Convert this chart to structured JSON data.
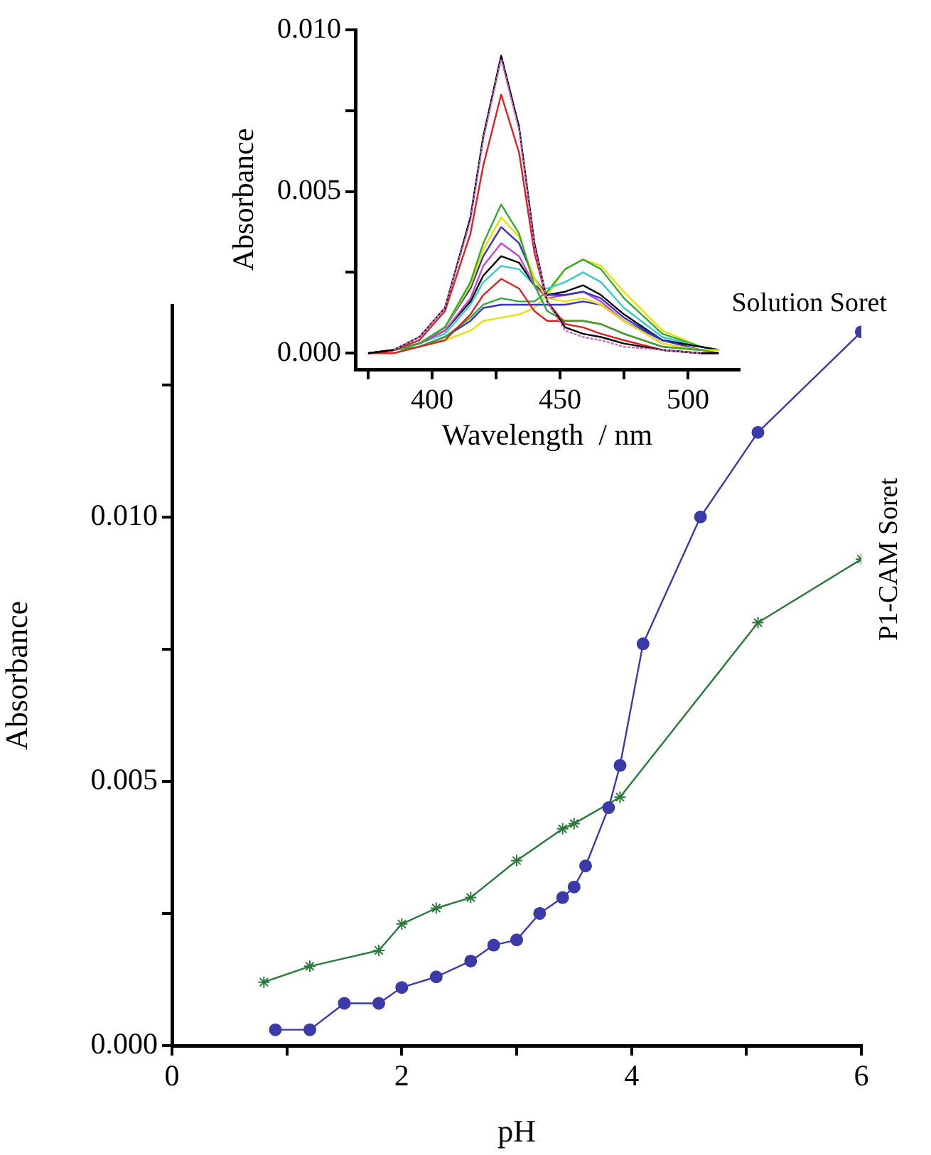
{
  "chart_data": [
    {
      "type": "line",
      "xlabel": "pH",
      "ylabel": "Absorbance",
      "xlim": [
        0,
        6
      ],
      "ylim": [
        0,
        0.014
      ],
      "xticks": [
        0,
        {
          "value": 1,
          "label": null
        },
        2,
        {
          "value": 3,
          "label": null
        },
        4,
        {
          "value": 5,
          "label": null
        },
        6
      ],
      "yticks": [
        {
          "value": 0,
          "label": "0.000"
        },
        {
          "value": 0.0025,
          "label": null
        },
        {
          "value": 0.005,
          "label": "0.005"
        },
        {
          "value": 0.0075,
          "label": null
        },
        {
          "value": 0.01,
          "label": "0.010"
        },
        {
          "value": 0.0125,
          "label": null
        }
      ],
      "grid": false,
      "legend": false,
      "series": [
        {
          "name": "Solution Soret",
          "color": "#3a3aa8",
          "marker": "circle",
          "x": [
            0.9,
            1.2,
            1.5,
            1.8,
            2.0,
            2.3,
            2.6,
            2.8,
            3.0,
            3.2,
            3.4,
            3.5,
            3.6,
            3.8,
            3.9,
            4.1,
            4.6,
            5.1,
            6.0
          ],
          "values": [
            0.0003,
            0.0003,
            0.0008,
            0.0008,
            0.0011,
            0.0013,
            0.0016,
            0.0019,
            0.002,
            0.0025,
            0.0028,
            0.003,
            0.0034,
            0.0045,
            0.0053,
            0.0076,
            0.01,
            0.0116,
            0.0135
          ]
        },
        {
          "name": "P1-CAM Soret",
          "color": "#2a7a3a",
          "marker": "cross",
          "x": [
            0.8,
            1.2,
            1.8,
            2.0,
            2.3,
            2.6,
            3.0,
            3.4,
            3.5,
            3.9,
            5.1,
            6.0
          ],
          "values": [
            0.0012,
            0.0015,
            0.0018,
            0.0023,
            0.0026,
            0.0028,
            0.0035,
            0.0041,
            0.0042,
            0.0047,
            0.008,
            0.0092
          ]
        }
      ]
    },
    {
      "type": "line",
      "xlabel": "Wavelength  / nm",
      "ylabel": "Absorbance",
      "xlim": [
        370,
        520
      ],
      "ylim": [
        -0.0005,
        0.01
      ],
      "xticks": [
        {
          "value": 375,
          "label": null
        },
        400,
        {
          "value": 425,
          "label": null
        },
        450,
        {
          "value": 475,
          "label": null
        },
        500
      ],
      "yticks": [
        {
          "value": 0,
          "label": "0.000"
        },
        {
          "value": 0.0025,
          "label": null
        },
        {
          "value": 0.005,
          "label": "0.005"
        },
        {
          "value": 0.0075,
          "label": null
        },
        {
          "value": 0.01,
          "label": "0.010"
        }
      ],
      "grid": false,
      "legend": false,
      "marker": "none",
      "x": [
        375,
        385,
        395,
        405,
        415,
        420,
        427,
        434,
        440,
        445,
        452,
        459,
        466,
        475,
        490,
        505,
        512
      ],
      "series": [
        {
          "color": "#000000",
          "values": [
            0,
            0.0001,
            0.0005,
            0.0014,
            0.0042,
            0.0067,
            0.0092,
            0.007,
            0.0034,
            0.0016,
            0.0008,
            0.0006,
            0.0005,
            0.0003,
            0.0001,
            0,
            0
          ]
        },
        {
          "color": "#cc66cc",
          "line_style": "dashed",
          "values": [
            null,
            0.0001,
            0.0005,
            0.0014,
            0.0041,
            0.0066,
            0.0091,
            0.0069,
            0.0033,
            0.0016,
            0.0007,
            0.0005,
            0.0004,
            0.0002,
            0.0001,
            0,
            null
          ]
        },
        {
          "color": "#e02020",
          "values": [
            0,
            0.0001,
            0.0004,
            0.0013,
            0.0037,
            0.0058,
            0.008,
            0.0062,
            0.0031,
            0.0016,
            0.0009,
            0.0008,
            0.0006,
            0.0004,
            0.0001,
            0,
            0
          ]
        },
        {
          "color": "#33aa33",
          "values": [
            0,
            0.0001,
            0.0003,
            0.0008,
            0.0022,
            0.0034,
            0.0046,
            0.0037,
            0.0021,
            0.0013,
            0.001,
            0.001,
            0.0009,
            0.0006,
            0.0002,
            0.0001,
            0
          ]
        },
        {
          "color": "#e8e000",
          "values": [
            null,
            null,
            0.0003,
            0.0008,
            0.0021,
            0.0032,
            0.0042,
            0.0036,
            0.0023,
            0.0017,
            0.0016,
            0.0017,
            0.0015,
            0.001,
            0.0003,
            0.0001,
            0.0001
          ]
        },
        {
          "color": "#3333cc",
          "values": [
            null,
            null,
            0.0003,
            0.0008,
            0.002,
            0.003,
            0.0039,
            0.0034,
            0.0023,
            0.0018,
            0.0018,
            0.0019,
            0.0017,
            0.0011,
            0.0004,
            0.0001,
            0.0001
          ]
        },
        {
          "color": "#cc44cc",
          "values": [
            0,
            0.0001,
            0.0003,
            0.0007,
            0.0017,
            0.0027,
            0.0034,
            0.003,
            0.0021,
            0.0017,
            0.0018,
            0.0019,
            0.0016,
            0.001,
            0.0003,
            null,
            null
          ]
        },
        {
          "color": "#000000",
          "values": [
            0,
            0.0001,
            0.0003,
            0.0007,
            0.0016,
            0.0024,
            0.003,
            0.0028,
            0.0021,
            0.0018,
            0.0019,
            0.0021,
            0.0018,
            0.0012,
            0.0004,
            0.0002,
            0.0001
          ]
        },
        {
          "color": "#33cccc",
          "values": [
            0,
            0.0001,
            0.0003,
            0.0006,
            0.0015,
            0.0022,
            0.0027,
            0.0026,
            0.0021,
            0.002,
            0.0022,
            0.0025,
            0.0022,
            0.0014,
            0.0005,
            0.0002,
            0.0001
          ]
        },
        {
          "color": "#e02020",
          "values": [
            0,
            0,
            0.0002,
            0.0004,
            0.0012,
            0.0018,
            0.0023,
            0.002,
            0.0013,
            0.001,
            0.001,
            0.001,
            0.0009,
            0.0006,
            0.0002,
            0.0001,
            0
          ]
        },
        {
          "color": "#33aa33",
          "values": [
            0,
            0.0001,
            0.0002,
            0.0005,
            0.0011,
            0.0015,
            0.0017,
            0.0016,
            0.0016,
            0.0019,
            0.0026,
            0.0029,
            0.0026,
            0.0017,
            0.0006,
            0.0002,
            0.0001
          ]
        },
        {
          "color": "#3333cc",
          "values": [
            null,
            null,
            0.0002,
            0.0005,
            0.001,
            0.0014,
            0.0015,
            0.0015,
            0.0015,
            0.0015,
            0.0015,
            0.0016,
            0.0015,
            0.001,
            0.0004,
            0.0002,
            0.0001
          ]
        },
        {
          "color": "#e8e000",
          "values": [
            null,
            null,
            0.0002,
            0.0004,
            0.0007,
            0.001,
            0.0011,
            0.0012,
            0.0014,
            0.0018,
            0.0026,
            0.0029,
            0.0027,
            0.0019,
            0.0007,
            0.0002,
            0.0001
          ]
        }
      ]
    }
  ]
}
